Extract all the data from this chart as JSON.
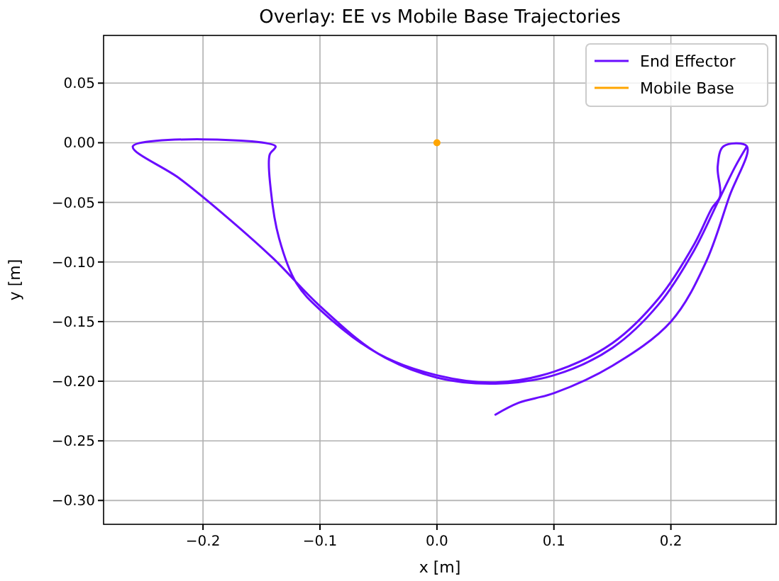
{
  "chart_data": {
    "type": "line",
    "title": "Overlay: EE vs Mobile Base Trajectories",
    "xlabel": "x [m]",
    "ylabel": "y [m]",
    "xlim": [
      -0.285,
      0.29
    ],
    "ylim": [
      -0.32,
      0.09
    ],
    "xticks": [
      {
        "value": -0.2,
        "label": "−0.2"
      },
      {
        "value": -0.1,
        "label": "−0.1"
      },
      {
        "value": 0,
        "label": "0.0"
      },
      {
        "value": 0.1,
        "label": "0.1"
      },
      {
        "value": 0.2,
        "label": "0.2"
      }
    ],
    "yticks": [
      {
        "value": 0.05,
        "label": "0.05"
      },
      {
        "value": 0,
        "label": "0.00"
      },
      {
        "value": -0.05,
        "label": "−0.05"
      },
      {
        "value": -0.1,
        "label": "−0.10"
      },
      {
        "value": -0.15,
        "label": "−0.15"
      },
      {
        "value": -0.2,
        "label": "−0.20"
      },
      {
        "value": -0.25,
        "label": "−0.25"
      },
      {
        "value": -0.3,
        "label": "−0.30"
      }
    ],
    "grid": true,
    "legend": "top right",
    "line_style": "solid",
    "series": [
      {
        "name": "End Effector",
        "color": "#6a0dff",
        "x": [
          0.05,
          0.07,
          0.1,
          0.15,
          0.2,
          0.23,
          0.25,
          0.265,
          0.245,
          0.24,
          0.242,
          0.235,
          0.22,
          0.19,
          0.15,
          0.1,
          0.05,
          0,
          -0.05,
          -0.1,
          -0.12,
          -0.135,
          -0.142,
          -0.143,
          -0.138,
          -0.26,
          -0.22,
          -0.18,
          -0.14,
          -0.1,
          -0.05,
          0,
          0.05,
          0.1,
          0.15,
          0.19,
          0.22,
          0.24,
          0.255,
          0.265
        ],
        "values": [
          -0.228,
          -0.218,
          -0.21,
          -0.187,
          -0.15,
          -0.1,
          -0.045,
          -0.003,
          -0.003,
          -0.02,
          -0.045,
          -0.055,
          -0.085,
          -0.13,
          -0.168,
          -0.192,
          -0.201,
          -0.195,
          -0.177,
          -0.14,
          -0.118,
          -0.08,
          -0.04,
          -0.01,
          -0.003,
          -0.003,
          -0.03,
          -0.062,
          -0.097,
          -0.137,
          -0.177,
          -0.197,
          -0.202,
          -0.195,
          -0.172,
          -0.135,
          -0.09,
          -0.05,
          -0.02,
          -0.003
        ]
      },
      {
        "name": "Mobile Base",
        "type": "scatter",
        "marker": "circle",
        "color": "#ffa500",
        "x": [
          0
        ],
        "values": [
          0
        ]
      }
    ]
  }
}
